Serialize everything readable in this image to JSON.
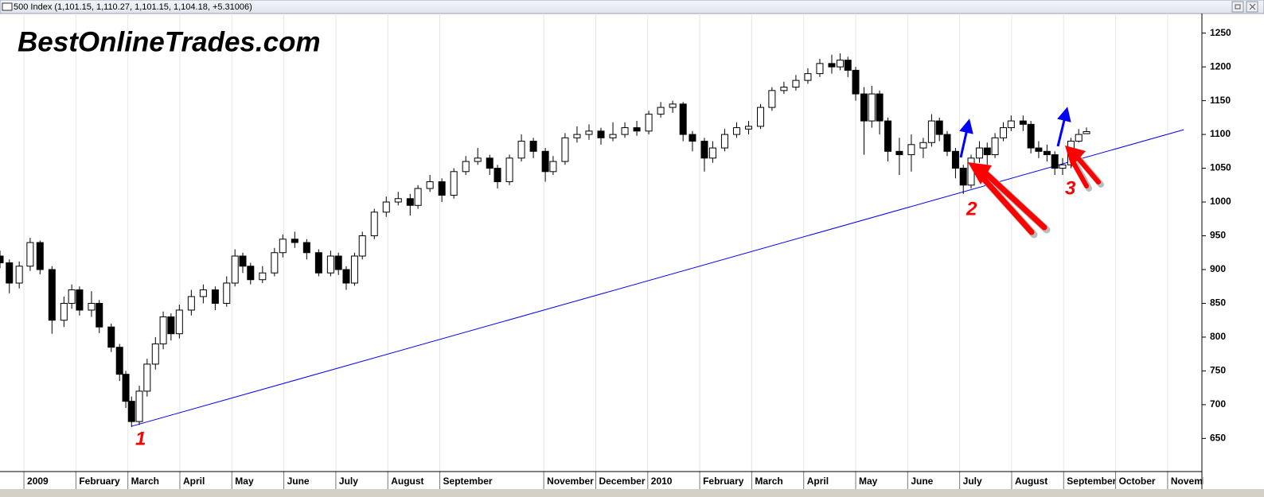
{
  "chart_data": {
    "type": "candlestick",
    "title": "500 Index (1,101.15, 1,110.27, 1,101.15, 1,104.18, +5.31006)",
    "annotations": [
      "BestOnlineTrades.com",
      "1",
      "2",
      "3"
    ],
    "xlim": [
      0.54,
      23.66
    ],
    "ylim": [
      601,
      1279
    ],
    "yticks": [
      650,
      700,
      750,
      800,
      850,
      900,
      950,
      1000,
      1050,
      1100,
      1150,
      1200,
      1250
    ],
    "xticks": [
      {
        "value": 1,
        "label": "2009"
      },
      {
        "value": 2,
        "label": "February"
      },
      {
        "value": 3,
        "label": "March"
      },
      {
        "value": 4,
        "label": "April"
      },
      {
        "value": 5,
        "label": "May"
      },
      {
        "value": 6,
        "label": "June"
      },
      {
        "value": 7,
        "label": "July"
      },
      {
        "value": 8,
        "label": "August"
      },
      {
        "value": 9,
        "label": "September"
      },
      {
        "value": 11,
        "label": "November"
      },
      {
        "value": 12,
        "label": "December"
      },
      {
        "value": 13,
        "label": "2010"
      },
      {
        "value": 14,
        "label": "February"
      },
      {
        "value": 15,
        "label": "March"
      },
      {
        "value": 16,
        "label": "April"
      },
      {
        "value": 17,
        "label": "May"
      },
      {
        "value": 18,
        "label": "June"
      },
      {
        "value": 19,
        "label": "July"
      },
      {
        "value": 20,
        "label": "August"
      },
      {
        "value": 21,
        "label": "September"
      },
      {
        "value": 22,
        "label": "October"
      },
      {
        "value": 23,
        "label": "November"
      }
    ],
    "grid": true,
    "up_color": "#ffffff",
    "down_color": "#000000",
    "trendline": {
      "color": "#0000ff",
      "x": [
        3.07,
        23.31
      ],
      "y": [
        668,
        1107
      ]
    },
    "x": [
      0.54,
      0.72,
      0.91,
      1.12,
      1.31,
      1.54,
      1.77,
      1.92,
      2.07,
      2.3,
      2.45,
      2.68,
      2.84,
      2.96,
      3.07,
      3.22,
      3.37,
      3.53,
      3.68,
      3.83,
      3.99,
      4.22,
      4.45,
      4.68,
      4.9,
      5.06,
      5.21,
      5.36,
      5.59,
      5.82,
      5.98,
      6.21,
      6.44,
      6.67,
      6.9,
      7.05,
      7.2,
      7.36,
      7.51,
      7.74,
      7.97,
      8.2,
      8.43,
      8.58,
      8.81,
      9.04,
      9.27,
      9.5,
      9.73,
      9.96,
      10.11,
      10.34,
      10.57,
      10.8,
      11.03,
      11.18,
      11.41,
      11.64,
      11.87,
      12.1,
      12.33,
      12.56,
      12.79,
      13.02,
      13.25,
      13.48,
      13.68,
      13.86,
      14.09,
      14.25,
      14.48,
      14.71,
      14.94,
      15.17,
      15.39,
      15.62,
      15.85,
      16.08,
      16.31,
      16.54,
      16.7,
      16.85,
      17.0,
      17.16,
      17.31,
      17.46,
      17.62,
      17.84,
      18.07,
      18.3,
      18.46,
      18.61,
      18.76,
      18.92,
      19.07,
      19.22,
      19.38,
      19.53,
      19.68,
      19.84,
      19.99,
      20.22,
      20.37,
      20.52,
      20.68,
      20.83,
      20.98,
      21.14,
      21.29,
      21.44
    ],
    "open": [
      920,
      910,
      880,
      905,
      940,
      900,
      825,
      850,
      870,
      840,
      850,
      815,
      785,
      745,
      705,
      675,
      720,
      760,
      790,
      830,
      805,
      840,
      860,
      870,
      850,
      880,
      920,
      905,
      885,
      895,
      925,
      945,
      940,
      925,
      895,
      920,
      900,
      880,
      920,
      950,
      985,
      1000,
      1005,
      995,
      1020,
      1030,
      1010,
      1045,
      1060,
      1065,
      1050,
      1030,
      1065,
      1090,
      1075,
      1045,
      1060,
      1095,
      1100,
      1105,
      1095,
      1100,
      1110,
      1105,
      1130,
      1140,
      1145,
      1100,
      1090,
      1065,
      1080,
      1100,
      1108,
      1112,
      1140,
      1165,
      1170,
      1180,
      1190,
      1205,
      1200,
      1210,
      1195,
      1160,
      1120,
      1160,
      1120,
      1075,
      1070,
      1080,
      1088,
      1120,
      1100,
      1075,
      1050,
      1025,
      1065,
      1080,
      1070,
      1095,
      1110,
      1120,
      1115,
      1080,
      1075,
      1070,
      1050,
      1055,
      1090,
      1101.15
    ],
    "high": [
      928,
      915,
      912,
      947,
      943,
      905,
      860,
      878,
      875,
      868,
      855,
      820,
      790,
      750,
      712,
      728,
      768,
      800,
      838,
      835,
      848,
      870,
      878,
      875,
      890,
      930,
      925,
      910,
      905,
      932,
      952,
      956,
      945,
      930,
      928,
      925,
      905,
      925,
      956,
      990,
      1008,
      1015,
      1012,
      1025,
      1040,
      1035,
      1050,
      1068,
      1080,
      1070,
      1055,
      1070,
      1100,
      1095,
      1080,
      1068,
      1102,
      1112,
      1115,
      1110,
      1118,
      1118,
      1120,
      1135,
      1148,
      1150,
      1148,
      1105,
      1095,
      1090,
      1108,
      1118,
      1120,
      1145,
      1170,
      1178,
      1188,
      1198,
      1212,
      1218,
      1220,
      1215,
      1200,
      1170,
      1172,
      1165,
      1125,
      1095,
      1100,
      1095,
      1130,
      1125,
      1105,
      1080,
      1055,
      1070,
      1090,
      1088,
      1102,
      1118,
      1128,
      1128,
      1120,
      1090,
      1085,
      1075,
      1065,
      1095,
      1108,
      1110.27
    ],
    "low": [
      902,
      865,
      872,
      898,
      893,
      805,
      815,
      842,
      832,
      830,
      806,
      778,
      735,
      695,
      667,
      670,
      712,
      752,
      782,
      795,
      798,
      832,
      850,
      840,
      845,
      875,
      895,
      878,
      880,
      890,
      918,
      932,
      915,
      890,
      890,
      892,
      870,
      876,
      915,
      945,
      978,
      995,
      980,
      990,
      1015,
      1000,
      1005,
      1040,
      1055,
      1040,
      1020,
      1025,
      1060,
      1065,
      1030,
      1040,
      1055,
      1088,
      1092,
      1085,
      1090,
      1095,
      1098,
      1100,
      1125,
      1132,
      1090,
      1075,
      1045,
      1058,
      1075,
      1095,
      1100,
      1108,
      1135,
      1160,
      1165,
      1175,
      1185,
      1190,
      1195,
      1185,
      1150,
      1070,
      1110,
      1100,
      1060,
      1040,
      1045,
      1065,
      1082,
      1090,
      1068,
      1035,
      1012,
      1020,
      1058,
      1055,
      1065,
      1090,
      1105,
      1105,
      1072,
      1065,
      1060,
      1040,
      1040,
      1050,
      1088,
      1101.15
    ],
    "close": [
      910,
      880,
      905,
      940,
      900,
      825,
      850,
      870,
      840,
      850,
      815,
      785,
      745,
      705,
      675,
      720,
      760,
      790,
      830,
      805,
      840,
      860,
      870,
      850,
      880,
      920,
      905,
      885,
      895,
      925,
      945,
      940,
      925,
      895,
      920,
      900,
      880,
      920,
      950,
      985,
      1000,
      1005,
      995,
      1020,
      1030,
      1010,
      1045,
      1060,
      1065,
      1050,
      1030,
      1065,
      1090,
      1075,
      1045,
      1060,
      1095,
      1100,
      1105,
      1095,
      1100,
      1110,
      1105,
      1130,
      1140,
      1145,
      1100,
      1090,
      1065,
      1080,
      1100,
      1110,
      1112,
      1140,
      1165,
      1170,
      1180,
      1190,
      1205,
      1200,
      1210,
      1195,
      1160,
      1120,
      1160,
      1120,
      1075,
      1070,
      1085,
      1088,
      1120,
      1100,
      1075,
      1050,
      1025,
      1065,
      1080,
      1070,
      1095,
      1110,
      1120,
      1115,
      1080,
      1075,
      1070,
      1050,
      1055,
      1090,
      1100,
      1104.18
    ]
  }
}
